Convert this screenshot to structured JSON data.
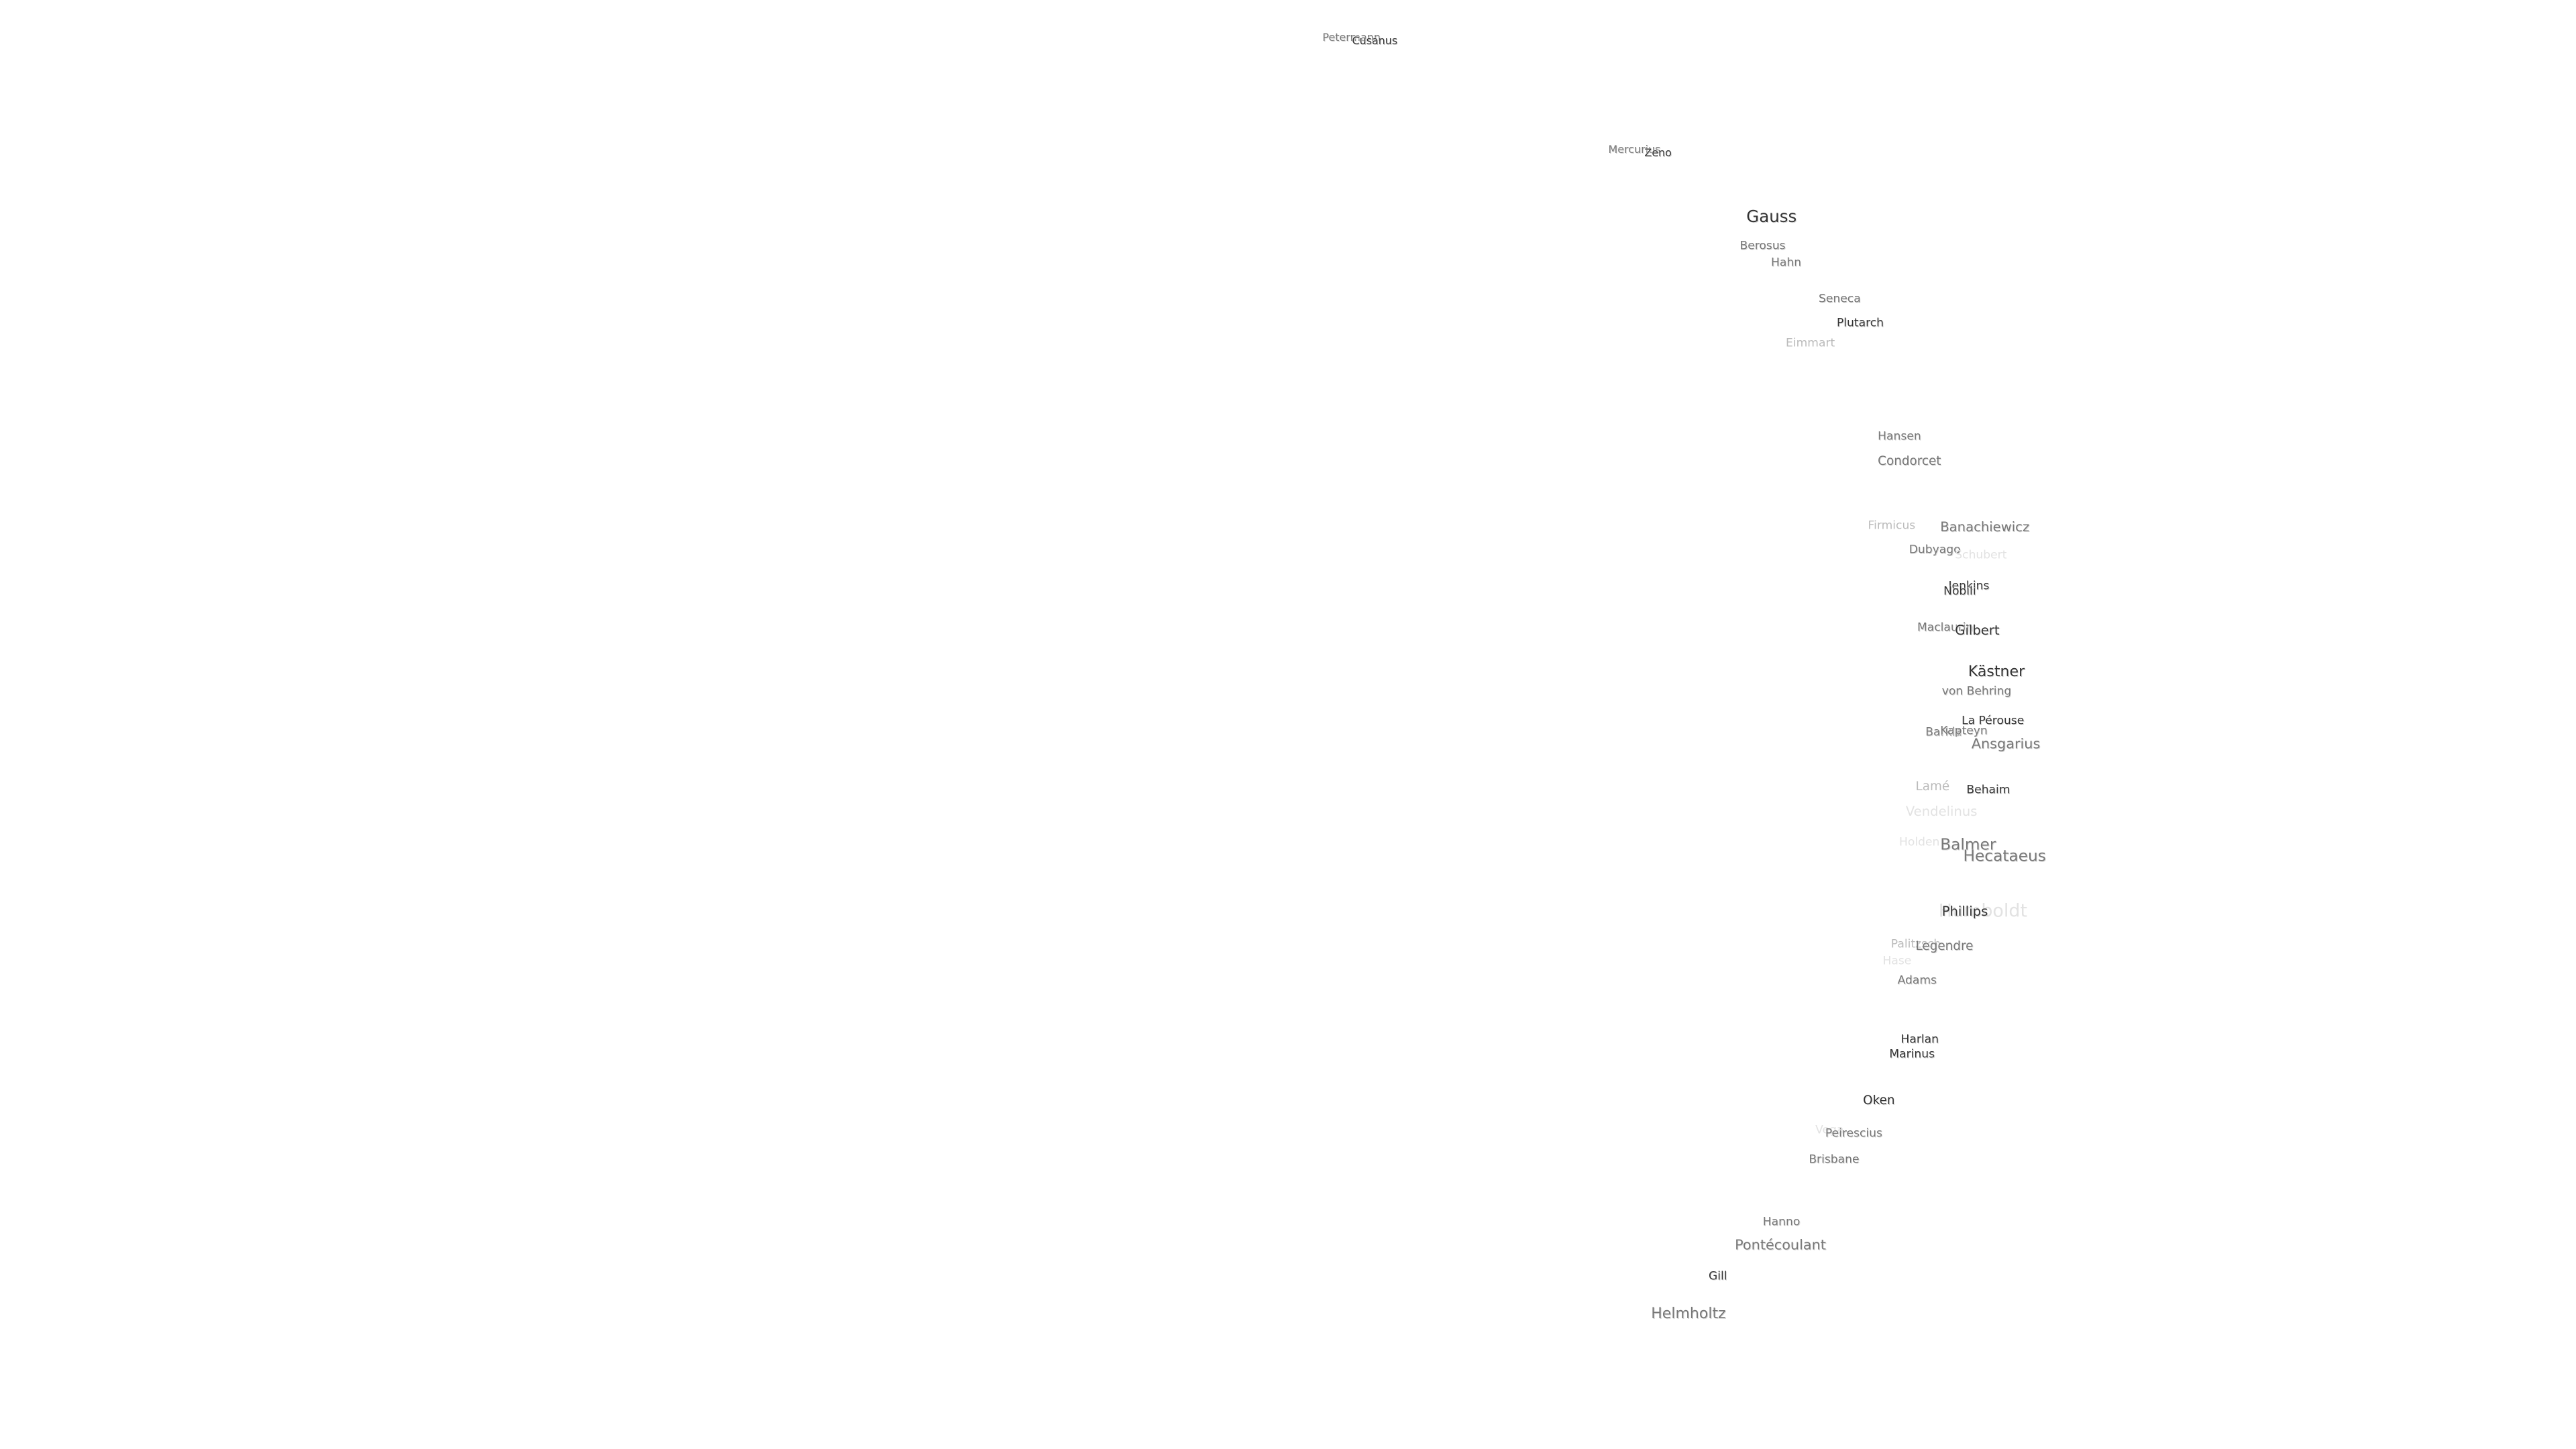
{
  "labels": [
    "Petermann",
    "Cusanus",
    "Mercurius",
    "Zeno",
    "Gauss",
    "Berosus",
    "Hahn",
    "Seneca",
    "Plutarch",
    "Eimmart",
    "Hansen",
    "Condorcet",
    "Firmicus",
    "Banachiewicz",
    "Dubyago",
    "Schubert",
    "Jenkins",
    "Nobili",
    "Maclaurin",
    "Gilbert",
    "Kästner",
    "von Behring",
    "La Pérouse",
    "Barkla",
    "Kapteyn",
    "Ansgarius",
    "Lamé",
    "Behaim",
    "Vendelinus",
    "Holden",
    "Balmer",
    "Hecataeus",
    "Humboldt",
    "Phillips",
    "Palitzsch",
    "Legendre",
    "Hase",
    "Adams",
    "Harlan",
    "Marinus",
    "Oken",
    "Vega",
    "Peirescius",
    "Brisbane",
    "Hanno",
    "Pontécoulant",
    "Gill",
    "Helmholtz"
  ]
}
